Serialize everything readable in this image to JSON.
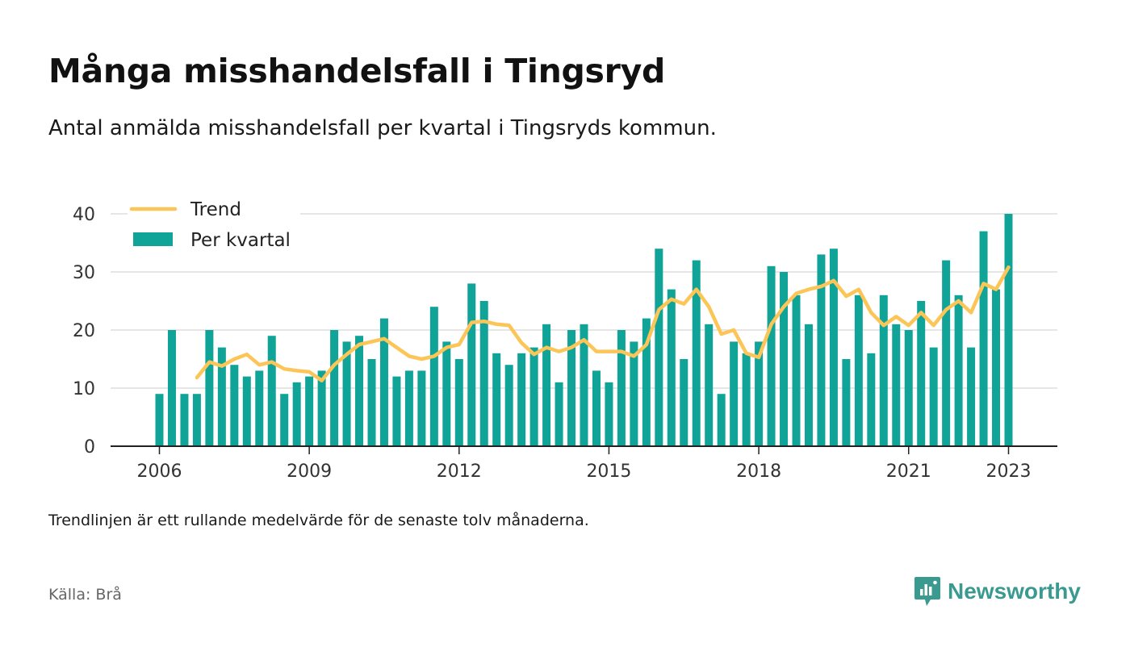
{
  "title": "Många misshandelsfall i Tingsryd",
  "subtitle": "Antal anmälda misshandelsfall per kvartal i Tingsryds kommun.",
  "footnote": "Trendlinjen är ett rullande medelvärde för de senaste tolv månaderna.",
  "source": "Källa: Brå",
  "brand": {
    "name": "Newsworthy",
    "icon": "bar-chart-speech-bubble-icon",
    "color": "#3a9a8f"
  },
  "colors": {
    "bars": "#10a398",
    "trend": "#fcc557",
    "grid": "#dddddd",
    "axis": "#222222",
    "text": "#333333"
  },
  "chart_data": {
    "type": "bar",
    "title": "Många misshandelsfall i Tingsryd",
    "subtitle": "Antal anmälda misshandelsfall per kvartal i Tingsryds kommun.",
    "xlabel": "",
    "ylabel": "",
    "ylim": [
      0,
      40
    ],
    "yticks": [
      0,
      10,
      20,
      30,
      40
    ],
    "xticks": [
      "2006",
      "2009",
      "2012",
      "2015",
      "2018",
      "2021",
      "2023"
    ],
    "grid": true,
    "legend_position": "top-left",
    "categories": [
      "2006 Q1",
      "2006 Q2",
      "2006 Q3",
      "2006 Q4",
      "2007 Q1",
      "2007 Q2",
      "2007 Q3",
      "2007 Q4",
      "2008 Q1",
      "2008 Q2",
      "2008 Q3",
      "2008 Q4",
      "2009 Q1",
      "2009 Q2",
      "2009 Q3",
      "2009 Q4",
      "2010 Q1",
      "2010 Q2",
      "2010 Q3",
      "2010 Q4",
      "2011 Q1",
      "2011 Q2",
      "2011 Q3",
      "2011 Q4",
      "2012 Q1",
      "2012 Q2",
      "2012 Q3",
      "2012 Q4",
      "2013 Q1",
      "2013 Q2",
      "2013 Q3",
      "2013 Q4",
      "2014 Q1",
      "2014 Q2",
      "2014 Q3",
      "2014 Q4",
      "2015 Q1",
      "2015 Q2",
      "2015 Q3",
      "2015 Q4",
      "2016 Q1",
      "2016 Q2",
      "2016 Q3",
      "2016 Q4",
      "2017 Q1",
      "2017 Q2",
      "2017 Q3",
      "2017 Q4",
      "2018 Q1",
      "2018 Q2",
      "2018 Q3",
      "2018 Q4",
      "2019 Q1",
      "2019 Q2",
      "2019 Q3",
      "2019 Q4",
      "2020 Q1",
      "2020 Q2",
      "2020 Q3",
      "2020 Q4",
      "2021 Q1",
      "2021 Q2",
      "2021 Q3",
      "2021 Q4",
      "2022 Q1",
      "2022 Q2",
      "2022 Q3",
      "2022 Q4",
      "2023 Q1"
    ],
    "series": [
      {
        "name": "Per kvartal",
        "type": "bar",
        "values": [
          9,
          20,
          9,
          9,
          20,
          17,
          14,
          12,
          13,
          19,
          9,
          11,
          12,
          13,
          20,
          18,
          19,
          15,
          22,
          12,
          13,
          13,
          24,
          18,
          15,
          28,
          25,
          16,
          14,
          16,
          17,
          21,
          11,
          20,
          21,
          13,
          11,
          20,
          18,
          22,
          34,
          27,
          15,
          32,
          21,
          9,
          18,
          16,
          18,
          31,
          30,
          26,
          21,
          33,
          34,
          15,
          26,
          16,
          26,
          21,
          20,
          25,
          17,
          32,
          26,
          17,
          37,
          27,
          40
        ]
      },
      {
        "name": "Trend",
        "type": "line",
        "values": [
          null,
          null,
          null,
          11.8,
          14.5,
          13.8,
          15.0,
          15.8,
          14.0,
          14.5,
          13.3,
          13.0,
          12.8,
          11.3,
          14.0,
          15.8,
          17.5,
          18.0,
          18.5,
          17.0,
          15.5,
          15.0,
          15.5,
          17.0,
          17.5,
          21.3,
          21.5,
          21.0,
          20.8,
          17.8,
          15.8,
          17.0,
          16.3,
          17.0,
          18.3,
          16.3,
          16.3,
          16.3,
          15.5,
          17.5,
          23.5,
          25.3,
          24.5,
          27.0,
          24.0,
          19.3,
          20.0,
          16.0,
          15.3,
          21.0,
          24.0,
          26.3,
          27.0,
          27.5,
          28.5,
          25.8,
          27.0,
          23.0,
          20.8,
          22.3,
          20.8,
          23.0,
          20.8,
          23.5,
          25.0,
          23.0,
          28.0,
          27.0,
          30.8
        ]
      }
    ]
  }
}
